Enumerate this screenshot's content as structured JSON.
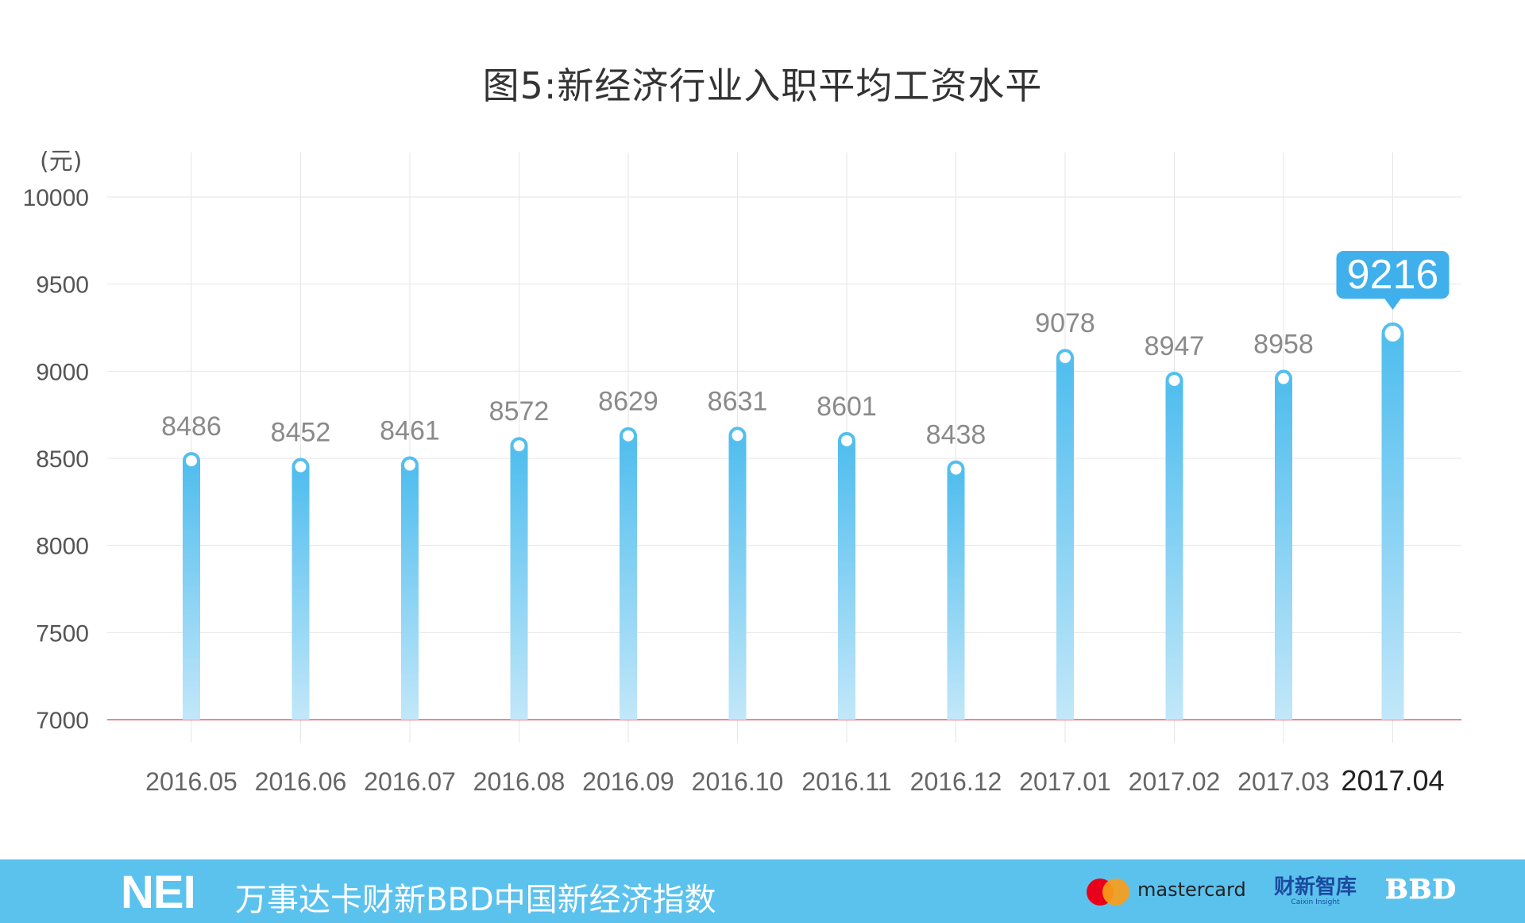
{
  "chart_data": {
    "type": "bar",
    "title": "图5:新经济行业入职平均工资水平",
    "unit_label": "(元)",
    "categories": [
      "2016.05",
      "2016.06",
      "2016.07",
      "2016.08",
      "2016.09",
      "2016.10",
      "2016.11",
      "2016.12",
      "2017.01",
      "2017.02",
      "2017.03",
      "2017.04"
    ],
    "values": [
      8486,
      8452,
      8461,
      8572,
      8629,
      8631,
      8601,
      8438,
      9078,
      8947,
      8958,
      9216
    ],
    "ylim": [
      7000,
      10000
    ],
    "yticks": [
      "10000",
      "9500",
      "9000",
      "8500",
      "8000",
      "7500",
      "7000"
    ],
    "highlight": {
      "category": "2017.04",
      "label": "9216"
    },
    "grid": true,
    "colors": {
      "bar_top": "#52bfef",
      "bar_bottom": "#bfe6f9",
      "baseline": "#e06070",
      "callout": "#3fb0ec",
      "grid": "#e6e6e6"
    }
  },
  "footer": {
    "logo": "NEI",
    "text": "万事达卡财新BBD中国新经济指数",
    "mastercard": "mastercard",
    "caixin": "财新智库",
    "caixin_en": "Caixin Insight",
    "bbd": "BBD",
    "background": "#5bc2ee"
  }
}
